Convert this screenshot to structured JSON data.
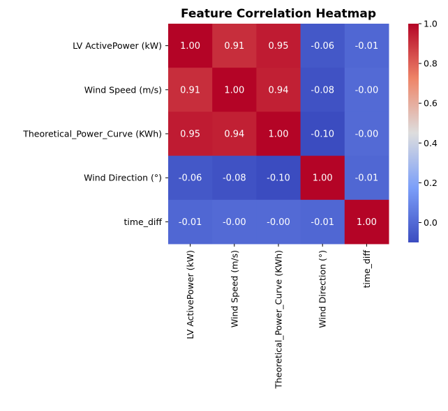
{
  "chart_data": {
    "type": "heatmap",
    "title": "Feature Correlation Heatmap",
    "xlabel": "",
    "ylabel": "",
    "row_labels": [
      "LV ActivePower (kW)",
      "Wind Speed (m/s)",
      "Theoretical_Power_Curve (KWh)",
      "Wind Direction (°)",
      "time_diff"
    ],
    "col_labels": [
      "LV ActivePower (kW)",
      "Wind Speed (m/s)",
      "Theoretical_Power_Curve (KWh)",
      "Wind Direction (°)",
      "time_diff"
    ],
    "values": [
      [
        1.0,
        0.91,
        0.95,
        -0.06,
        -0.01
      ],
      [
        0.91,
        1.0,
        0.94,
        -0.08,
        -0.0
      ],
      [
        0.95,
        0.94,
        1.0,
        -0.1,
        -0.0
      ],
      [
        -0.06,
        -0.08,
        -0.1,
        1.0,
        -0.01
      ],
      [
        -0.01,
        -0.0,
        -0.0,
        -0.01,
        1.0
      ]
    ],
    "cell_labels": [
      [
        "1.00",
        "0.91",
        "0.95",
        "-0.06",
        "-0.01"
      ],
      [
        "0.91",
        "1.00",
        "0.94",
        "-0.08",
        "-0.00"
      ],
      [
        "0.95",
        "0.94",
        "1.00",
        "-0.10",
        "-0.00"
      ],
      [
        "-0.06",
        "-0.08",
        "-0.10",
        "1.00",
        "-0.01"
      ],
      [
        "-0.01",
        "-0.00",
        "-0.00",
        "-0.01",
        "1.00"
      ]
    ],
    "colormap": "coolwarm",
    "colorbar": {
      "range": [
        -0.1,
        1.0
      ],
      "tick_values": [
        0.0,
        0.2,
        0.4,
        0.6,
        0.8,
        1.0
      ],
      "tick_labels": [
        "0.0",
        "0.2",
        "0.4",
        "0.6",
        "0.8",
        "1.0"
      ]
    }
  }
}
